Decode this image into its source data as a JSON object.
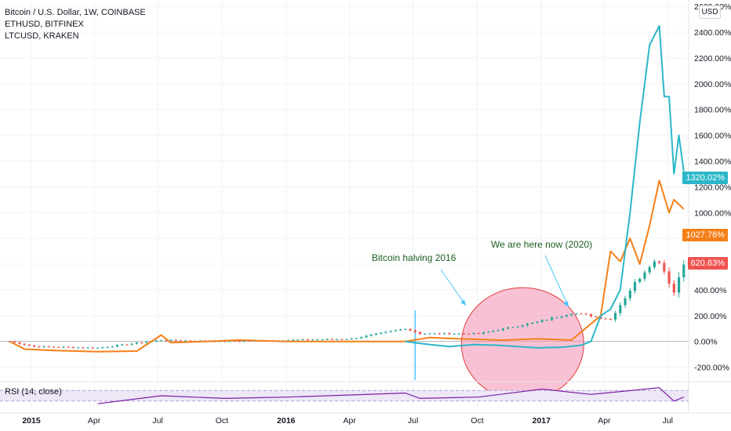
{
  "legend": {
    "main_series": "Bitcoin / U.S. Dollar, 1W, COINBASE",
    "compare_1": "ETHUSD, BITFINEX",
    "compare_2": "LTCUSD, KRAKEN"
  },
  "currency": "USD",
  "rsi_label": "RSI (14, close)",
  "annotations": {
    "halving": "Bitcoin halving 2016",
    "here_now": "We are here now (2020)"
  },
  "price_tags": {
    "eth": "1320.02%",
    "ltc": "1027.76%",
    "btc": "620.63%"
  },
  "colors": {
    "eth": "#2bb7c9",
    "ltc": "#f57f17",
    "btc_up": "#26a69a",
    "btc_down": "#ef5350",
    "rsi": "#7b1fa2",
    "rsi_band": "#ede7f6",
    "circle_fill": "#f48fb1",
    "circle_stroke": "#e53935",
    "halving_line": "#4fc3f7",
    "annotation_text": "#1b5e20"
  },
  "chart_data": {
    "type": "line",
    "x_ticks": [
      "2015",
      "Apr",
      "Jul",
      "Oct",
      "2016",
      "Apr",
      "Jul",
      "Oct",
      "2017",
      "Apr",
      "Jul"
    ],
    "y_ticks": [
      "2600.00%",
      "2400.00%",
      "2200.00%",
      "2000.00%",
      "1800.00%",
      "1600.00%",
      "1400.00%",
      "1200.00%",
      "1000.00%",
      "800.00%",
      "600.00%",
      "400.00%",
      "200.00%",
      "0.00%",
      "-200.00%"
    ],
    "ylim": [
      -300,
      2650
    ],
    "x_range": [
      "2014-11-17",
      "2017-07-31"
    ],
    "series": [
      {
        "name": "ETHUSD, BITFINEX",
        "points": [
          [
            "2016-06-20",
            0
          ],
          [
            "2016-07-18",
            -20
          ],
          [
            "2016-08-22",
            -40
          ],
          [
            "2016-09-26",
            -25
          ],
          [
            "2016-10-31",
            -30
          ],
          [
            "2016-11-28",
            -40
          ],
          [
            "2016-12-26",
            -50
          ],
          [
            "2017-01-30",
            -45
          ],
          [
            "2017-02-27",
            -30
          ],
          [
            "2017-03-13",
            0
          ],
          [
            "2017-03-27",
            200
          ],
          [
            "2017-04-10",
            250
          ],
          [
            "2017-04-24",
            400
          ],
          [
            "2017-05-08",
            1000
          ],
          [
            "2017-05-22",
            1700
          ],
          [
            "2017-06-05",
            2300
          ],
          [
            "2017-06-19",
            2450
          ],
          [
            "2017-06-26",
            1900
          ],
          [
            "2017-07-03",
            1900
          ],
          [
            "2017-07-10",
            1300
          ],
          [
            "2017-07-17",
            1600
          ],
          [
            "2017-07-24",
            1320
          ]
        ]
      },
      {
        "name": "LTCUSD, KRAKEN",
        "points": [
          [
            "2014-12-01",
            0
          ],
          [
            "2014-12-22",
            -60
          ],
          [
            "2015-02-02",
            -70
          ],
          [
            "2015-04-06",
            -80
          ],
          [
            "2015-06-01",
            -75
          ],
          [
            "2015-07-06",
            50
          ],
          [
            "2015-07-20",
            -10
          ],
          [
            "2015-09-07",
            0
          ],
          [
            "2015-10-26",
            10
          ],
          [
            "2016-01-04",
            0
          ],
          [
            "2016-03-07",
            0
          ],
          [
            "2016-06-20",
            0
          ],
          [
            "2016-07-25",
            30
          ],
          [
            "2016-09-05",
            20
          ],
          [
            "2016-11-07",
            10
          ],
          [
            "2016-12-26",
            20
          ],
          [
            "2017-02-13",
            10
          ],
          [
            "2017-03-27",
            200
          ],
          [
            "2017-04-10",
            700
          ],
          [
            "2017-04-24",
            620
          ],
          [
            "2017-05-08",
            800
          ],
          [
            "2017-05-22",
            600
          ],
          [
            "2017-06-05",
            900
          ],
          [
            "2017-06-19",
            1250
          ],
          [
            "2017-07-03",
            1000
          ],
          [
            "2017-07-10",
            1100
          ],
          [
            "2017-07-24",
            1028
          ]
        ]
      },
      {
        "name": "Bitcoin / U.S. Dollar, 1W, COINBASE",
        "style": "candles",
        "closes": [
          [
            "2014-12-01",
            0
          ],
          [
            "2015-01-05",
            -40
          ],
          [
            "2015-04-06",
            -50
          ],
          [
            "2015-07-06",
            10
          ],
          [
            "2015-10-05",
            0
          ],
          [
            "2016-01-04",
            10
          ],
          [
            "2016-04-04",
            20
          ],
          [
            "2016-06-20",
            100
          ],
          [
            "2016-07-11",
            60
          ],
          [
            "2016-10-03",
            60
          ],
          [
            "2016-12-26",
            150
          ],
          [
            "2017-02-13",
            220
          ],
          [
            "2017-03-13",
            200
          ],
          [
            "2017-04-10",
            170
          ],
          [
            "2017-05-08",
            400
          ],
          [
            "2017-06-05",
            600
          ],
          [
            "2017-06-19",
            630
          ],
          [
            "2017-07-10",
            380
          ],
          [
            "2017-07-24",
            621
          ]
        ]
      }
    ],
    "rsi": {
      "label": "RSI (14, close)",
      "range": [
        0,
        100
      ],
      "band": [
        30,
        70
      ],
      "points": [
        [
          "2015-04-06",
          20
        ],
        [
          "2015-07-06",
          50
        ],
        [
          "2015-10-05",
          40
        ],
        [
          "2016-01-04",
          45
        ],
        [
          "2016-06-20",
          60
        ],
        [
          "2016-07-11",
          40
        ],
        [
          "2016-10-03",
          45
        ],
        [
          "2017-01-02",
          75
        ],
        [
          "2017-03-13",
          55
        ],
        [
          "2017-06-19",
          80
        ],
        [
          "2017-07-10",
          30
        ],
        [
          "2017-07-24",
          45
        ]
      ]
    }
  }
}
